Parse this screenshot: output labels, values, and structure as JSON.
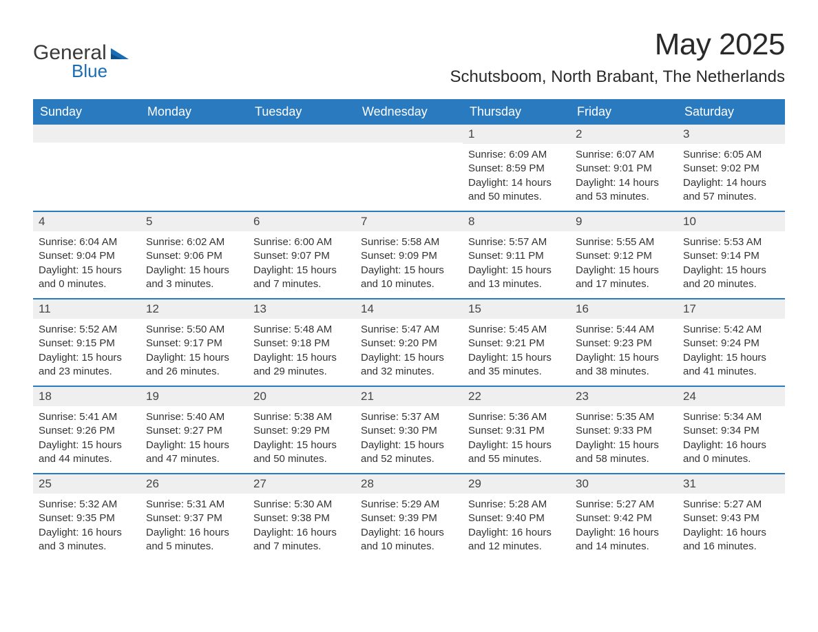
{
  "brand": {
    "name_part1": "General",
    "name_part2": "Blue",
    "icon_color": "#1a6db5"
  },
  "header": {
    "month_title": "May 2025",
    "location": "Schutsboom, North Brabant, The Netherlands"
  },
  "colors": {
    "header_bg": "#2a7ac0",
    "header_text": "#ffffff",
    "week_divider": "#2a7ac0",
    "daynum_bg": "#efefef",
    "body_text": "#333333",
    "page_bg": "#ffffff"
  },
  "typography": {
    "month_title_fontsize": 44,
    "subtitle_fontsize": 24,
    "dayhead_fontsize": 18,
    "daynum_fontsize": 17,
    "cell_fontsize": 15
  },
  "day_headers": [
    "Sunday",
    "Monday",
    "Tuesday",
    "Wednesday",
    "Thursday",
    "Friday",
    "Saturday"
  ],
  "weeks": [
    [
      {
        "num": "",
        "sunrise": "",
        "sunset": "",
        "daylight": ""
      },
      {
        "num": "",
        "sunrise": "",
        "sunset": "",
        "daylight": ""
      },
      {
        "num": "",
        "sunrise": "",
        "sunset": "",
        "daylight": ""
      },
      {
        "num": "",
        "sunrise": "",
        "sunset": "",
        "daylight": ""
      },
      {
        "num": "1",
        "sunrise": "Sunrise: 6:09 AM",
        "sunset": "Sunset: 8:59 PM",
        "daylight": "Daylight: 14 hours and 50 minutes."
      },
      {
        "num": "2",
        "sunrise": "Sunrise: 6:07 AM",
        "sunset": "Sunset: 9:01 PM",
        "daylight": "Daylight: 14 hours and 53 minutes."
      },
      {
        "num": "3",
        "sunrise": "Sunrise: 6:05 AM",
        "sunset": "Sunset: 9:02 PM",
        "daylight": "Daylight: 14 hours and 57 minutes."
      }
    ],
    [
      {
        "num": "4",
        "sunrise": "Sunrise: 6:04 AM",
        "sunset": "Sunset: 9:04 PM",
        "daylight": "Daylight: 15 hours and 0 minutes."
      },
      {
        "num": "5",
        "sunrise": "Sunrise: 6:02 AM",
        "sunset": "Sunset: 9:06 PM",
        "daylight": "Daylight: 15 hours and 3 minutes."
      },
      {
        "num": "6",
        "sunrise": "Sunrise: 6:00 AM",
        "sunset": "Sunset: 9:07 PM",
        "daylight": "Daylight: 15 hours and 7 minutes."
      },
      {
        "num": "7",
        "sunrise": "Sunrise: 5:58 AM",
        "sunset": "Sunset: 9:09 PM",
        "daylight": "Daylight: 15 hours and 10 minutes."
      },
      {
        "num": "8",
        "sunrise": "Sunrise: 5:57 AM",
        "sunset": "Sunset: 9:11 PM",
        "daylight": "Daylight: 15 hours and 13 minutes."
      },
      {
        "num": "9",
        "sunrise": "Sunrise: 5:55 AM",
        "sunset": "Sunset: 9:12 PM",
        "daylight": "Daylight: 15 hours and 17 minutes."
      },
      {
        "num": "10",
        "sunrise": "Sunrise: 5:53 AM",
        "sunset": "Sunset: 9:14 PM",
        "daylight": "Daylight: 15 hours and 20 minutes."
      }
    ],
    [
      {
        "num": "11",
        "sunrise": "Sunrise: 5:52 AM",
        "sunset": "Sunset: 9:15 PM",
        "daylight": "Daylight: 15 hours and 23 minutes."
      },
      {
        "num": "12",
        "sunrise": "Sunrise: 5:50 AM",
        "sunset": "Sunset: 9:17 PM",
        "daylight": "Daylight: 15 hours and 26 minutes."
      },
      {
        "num": "13",
        "sunrise": "Sunrise: 5:48 AM",
        "sunset": "Sunset: 9:18 PM",
        "daylight": "Daylight: 15 hours and 29 minutes."
      },
      {
        "num": "14",
        "sunrise": "Sunrise: 5:47 AM",
        "sunset": "Sunset: 9:20 PM",
        "daylight": "Daylight: 15 hours and 32 minutes."
      },
      {
        "num": "15",
        "sunrise": "Sunrise: 5:45 AM",
        "sunset": "Sunset: 9:21 PM",
        "daylight": "Daylight: 15 hours and 35 minutes."
      },
      {
        "num": "16",
        "sunrise": "Sunrise: 5:44 AM",
        "sunset": "Sunset: 9:23 PM",
        "daylight": "Daylight: 15 hours and 38 minutes."
      },
      {
        "num": "17",
        "sunrise": "Sunrise: 5:42 AM",
        "sunset": "Sunset: 9:24 PM",
        "daylight": "Daylight: 15 hours and 41 minutes."
      }
    ],
    [
      {
        "num": "18",
        "sunrise": "Sunrise: 5:41 AM",
        "sunset": "Sunset: 9:26 PM",
        "daylight": "Daylight: 15 hours and 44 minutes."
      },
      {
        "num": "19",
        "sunrise": "Sunrise: 5:40 AM",
        "sunset": "Sunset: 9:27 PM",
        "daylight": "Daylight: 15 hours and 47 minutes."
      },
      {
        "num": "20",
        "sunrise": "Sunrise: 5:38 AM",
        "sunset": "Sunset: 9:29 PM",
        "daylight": "Daylight: 15 hours and 50 minutes."
      },
      {
        "num": "21",
        "sunrise": "Sunrise: 5:37 AM",
        "sunset": "Sunset: 9:30 PM",
        "daylight": "Daylight: 15 hours and 52 minutes."
      },
      {
        "num": "22",
        "sunrise": "Sunrise: 5:36 AM",
        "sunset": "Sunset: 9:31 PM",
        "daylight": "Daylight: 15 hours and 55 minutes."
      },
      {
        "num": "23",
        "sunrise": "Sunrise: 5:35 AM",
        "sunset": "Sunset: 9:33 PM",
        "daylight": "Daylight: 15 hours and 58 minutes."
      },
      {
        "num": "24",
        "sunrise": "Sunrise: 5:34 AM",
        "sunset": "Sunset: 9:34 PM",
        "daylight": "Daylight: 16 hours and 0 minutes."
      }
    ],
    [
      {
        "num": "25",
        "sunrise": "Sunrise: 5:32 AM",
        "sunset": "Sunset: 9:35 PM",
        "daylight": "Daylight: 16 hours and 3 minutes."
      },
      {
        "num": "26",
        "sunrise": "Sunrise: 5:31 AM",
        "sunset": "Sunset: 9:37 PM",
        "daylight": "Daylight: 16 hours and 5 minutes."
      },
      {
        "num": "27",
        "sunrise": "Sunrise: 5:30 AM",
        "sunset": "Sunset: 9:38 PM",
        "daylight": "Daylight: 16 hours and 7 minutes."
      },
      {
        "num": "28",
        "sunrise": "Sunrise: 5:29 AM",
        "sunset": "Sunset: 9:39 PM",
        "daylight": "Daylight: 16 hours and 10 minutes."
      },
      {
        "num": "29",
        "sunrise": "Sunrise: 5:28 AM",
        "sunset": "Sunset: 9:40 PM",
        "daylight": "Daylight: 16 hours and 12 minutes."
      },
      {
        "num": "30",
        "sunrise": "Sunrise: 5:27 AM",
        "sunset": "Sunset: 9:42 PM",
        "daylight": "Daylight: 16 hours and 14 minutes."
      },
      {
        "num": "31",
        "sunrise": "Sunrise: 5:27 AM",
        "sunset": "Sunset: 9:43 PM",
        "daylight": "Daylight: 16 hours and 16 minutes."
      }
    ]
  ]
}
